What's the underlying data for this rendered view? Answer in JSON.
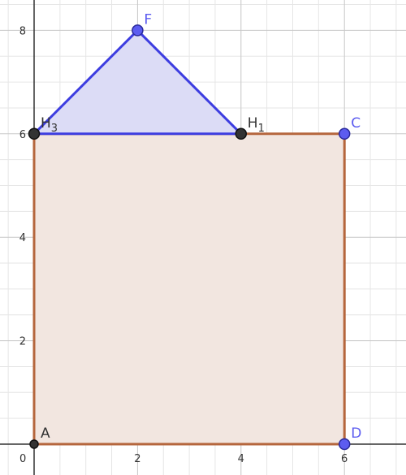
{
  "colors": {
    "minor_grid": "#e6e6e6",
    "major_grid": "#c8c8c8",
    "axis": "#333333",
    "square_fill": "#f2e6e0",
    "square_stroke": "#b5663d",
    "triangle_fill": "#dcdcf6",
    "triangle_stroke": "#3d3de0",
    "point_blue": "#5c5cf0",
    "point_black": "#333333",
    "label_blue": "#5c5cf0",
    "label_black": "#333333"
  },
  "axes": {
    "xlim": [
      -0.6,
      7.2
    ],
    "ylim": [
      -0.3,
      8.6
    ],
    "x_ticks": [
      0,
      2,
      4,
      6
    ],
    "y_ticks": [
      2,
      4,
      6,
      8
    ],
    "minor_step": 0.5
  },
  "polygons": {
    "square": [
      "A",
      "D",
      "C",
      "H_3"
    ],
    "triangle": [
      "H_3",
      "F",
      "H_1"
    ]
  },
  "points": [
    {
      "id": "A",
      "name": "A",
      "sub": "",
      "x": 0,
      "y": 0,
      "style": "black",
      "label_pos": "top-right"
    },
    {
      "id": "D",
      "name": "D",
      "sub": "",
      "x": 6,
      "y": 0,
      "style": "blue",
      "label_pos": "top-right"
    },
    {
      "id": "C",
      "name": "C",
      "sub": "",
      "x": 6,
      "y": 6,
      "style": "blue",
      "label_pos": "top-right"
    },
    {
      "id": "F",
      "name": "F",
      "sub": "",
      "x": 2,
      "y": 8,
      "style": "blue",
      "label_pos": "top-right"
    },
    {
      "id": "H_1",
      "name": "H",
      "sub": "1",
      "x": 4,
      "y": 6,
      "style": "black",
      "label_pos": "top-right"
    },
    {
      "id": "H_3",
      "name": "H",
      "sub": "3",
      "x": 0,
      "y": 6,
      "style": "black",
      "label_pos": "top-right"
    }
  ]
}
